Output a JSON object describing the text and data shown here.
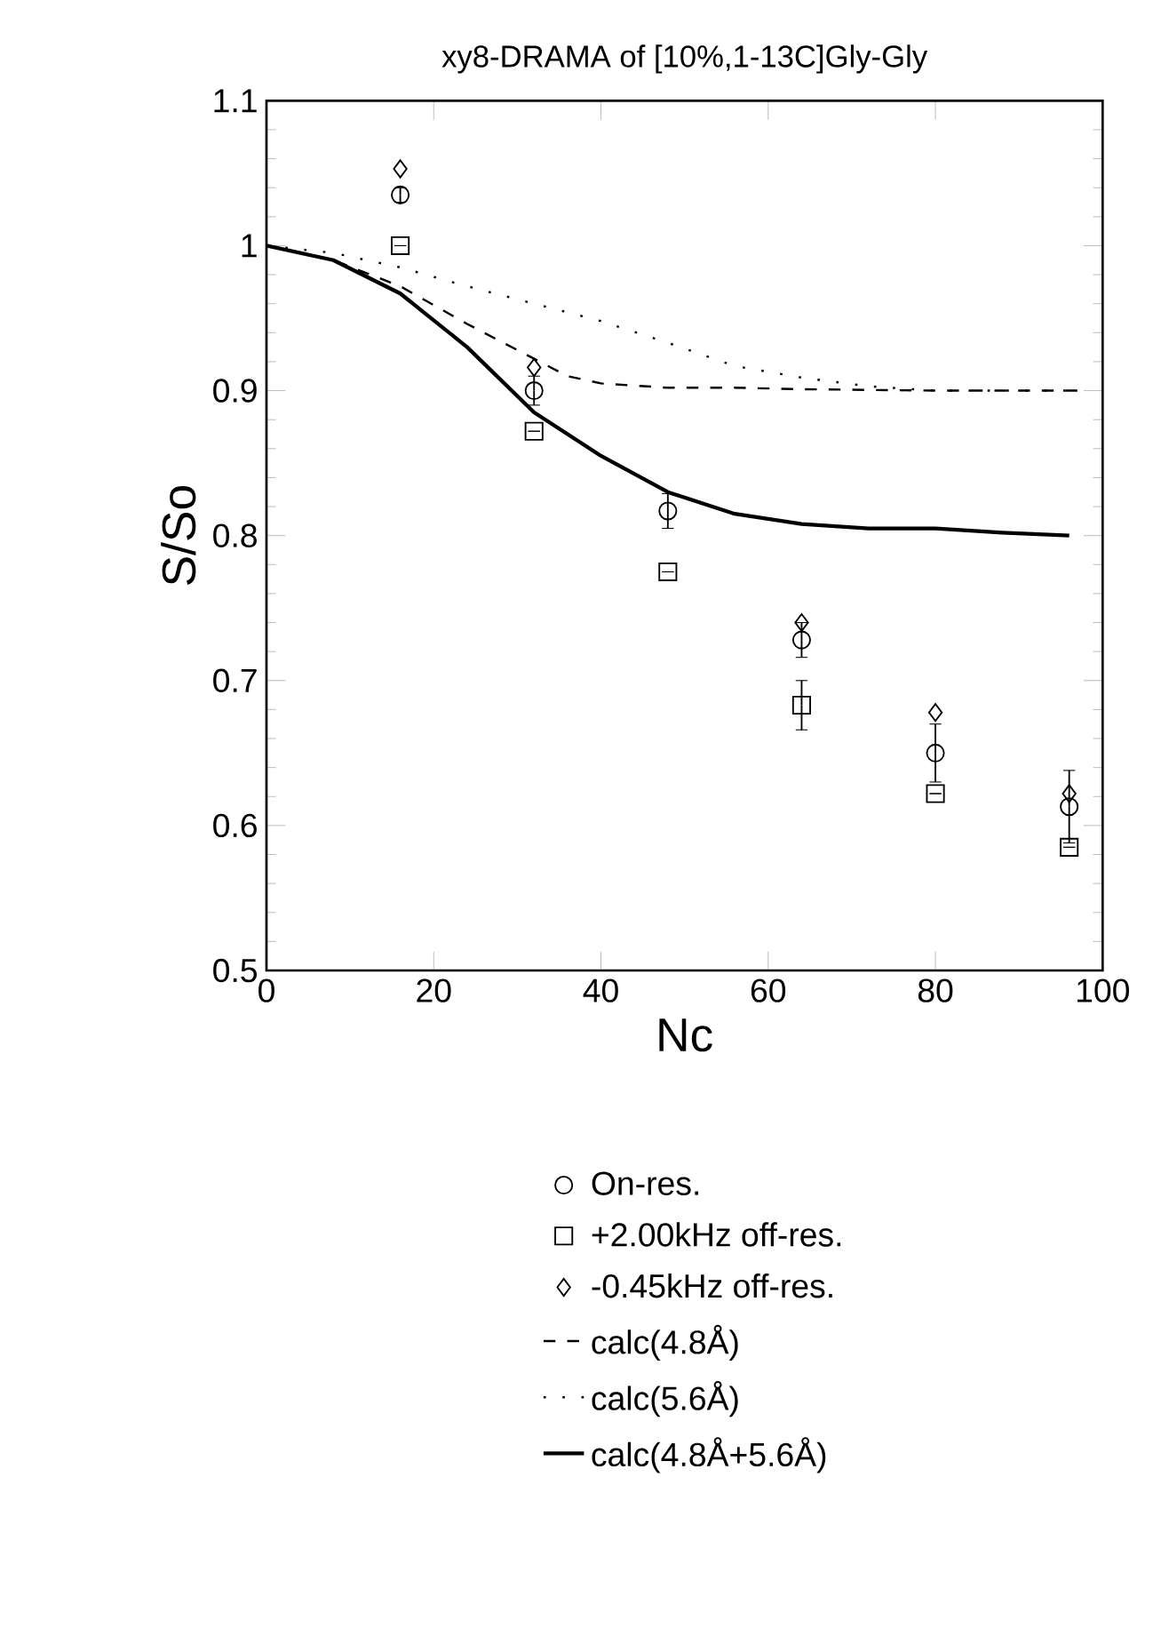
{
  "chart_data": {
    "type": "scatter",
    "title": "xy8-DRAMA of [10%,1-13C]Gly-Gly",
    "xlabel": "Nc",
    "ylabel": "S/So",
    "xlim": [
      0,
      100
    ],
    "ylim": [
      0.5,
      1.1
    ],
    "xticks": [
      0,
      20,
      40,
      60,
      80,
      100
    ],
    "yticks": [
      0.5,
      0.6,
      0.7,
      0.8,
      0.9,
      1,
      1.1
    ],
    "legend": "bottom",
    "series": [
      {
        "name": "On-res.",
        "color": "#000000",
        "marker": "circle",
        "x": [
          16,
          32,
          48,
          64,
          80,
          96
        ],
        "values": [
          1.035,
          0.9,
          0.817,
          0.728,
          0.65,
          0.613
        ],
        "errors": [
          0.005,
          0.01,
          0.012,
          0.012,
          0.02,
          0.025
        ]
      },
      {
        "name": "+2.00kHz  off-res.",
        "color": "#000000",
        "marker": "square",
        "x": [
          16,
          32,
          48,
          64,
          80,
          96
        ],
        "values": [
          1.0,
          0.872,
          0.775,
          0.683,
          0.622,
          0.585
        ],
        "errors": [
          null,
          null,
          null,
          0.017,
          null,
          null
        ]
      },
      {
        "name": "-0.45kHz  off-res.",
        "color": "#000000",
        "marker": "diamond",
        "x": [
          16,
          32,
          64,
          80,
          96
        ],
        "values": [
          1.053,
          0.916,
          0.74,
          0.678,
          0.622
        ]
      },
      {
        "name": "calc(4.8Å)",
        "type": "line",
        "color": "#000000",
        "line_style": "dashed",
        "x": [
          0,
          8,
          16,
          24,
          32,
          36,
          40,
          48,
          56,
          64,
          80,
          97
        ],
        "values": [
          1.0,
          0.99,
          0.972,
          0.946,
          0.922,
          0.91,
          0.905,
          0.902,
          0.902,
          0.901,
          0.9,
          0.9
        ]
      },
      {
        "name": "calc(5.6Å)",
        "type": "line",
        "color": "#000000",
        "line_style": "dotted",
        "x": [
          0,
          8,
          16,
          24,
          32,
          40,
          48,
          56,
          64,
          72,
          80,
          88,
          96
        ],
        "values": [
          1.0,
          0.995,
          0.985,
          0.972,
          0.96,
          0.948,
          0.933,
          0.917,
          0.909,
          0.903,
          0.9,
          0.9,
          0.9
        ]
      },
      {
        "name": "calc(4.8Å+5.6Å)",
        "type": "line",
        "color": "#000000",
        "line_style": "solid",
        "x": [
          0,
          8,
          16,
          24,
          32,
          40,
          48,
          56,
          64,
          72,
          80,
          88,
          96
        ],
        "values": [
          1.0,
          0.99,
          0.967,
          0.93,
          0.885,
          0.855,
          0.83,
          0.815,
          0.808,
          0.805,
          0.805,
          0.802,
          0.8
        ]
      }
    ]
  }
}
